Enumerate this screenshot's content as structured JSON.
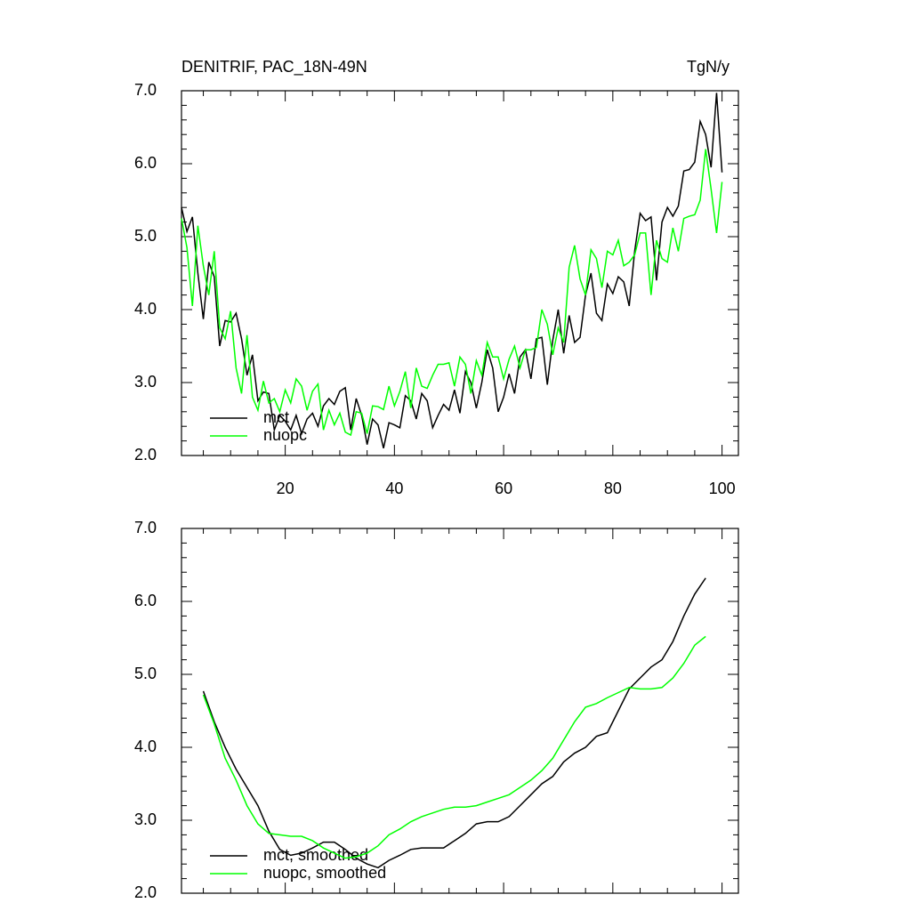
{
  "chart_data": [
    {
      "type": "line",
      "title": "DENITRIF, PAC_18N-49N",
      "units": "TgN/y",
      "x": [
        1,
        2,
        3,
        4,
        5,
        6,
        7,
        8,
        9,
        10,
        11,
        12,
        13,
        14,
        15,
        16,
        17,
        18,
        19,
        20,
        21,
        22,
        23,
        24,
        25,
        26,
        27,
        28,
        29,
        30,
        31,
        32,
        33,
        34,
        35,
        36,
        37,
        38,
        39,
        40,
        41,
        42,
        43,
        44,
        45,
        46,
        47,
        48,
        49,
        50,
        51,
        52,
        53,
        54,
        55,
        56,
        57,
        58,
        59,
        60,
        61,
        62,
        63,
        64,
        65,
        66,
        67,
        68,
        69,
        70,
        71,
        72,
        73,
        74,
        75,
        76,
        77,
        78,
        79,
        80,
        81,
        82,
        83,
        84,
        85,
        86,
        87,
        88,
        89,
        90,
        91,
        92,
        93,
        94,
        95,
        96,
        97,
        98,
        99,
        100
      ],
      "series": [
        {
          "name": "mct",
          "color": "#000000",
          "values": [
            5.4,
            5.07,
            5.27,
            4.5,
            3.87,
            4.65,
            4.45,
            3.5,
            3.85,
            3.83,
            3.95,
            3.6,
            3.1,
            3.38,
            2.75,
            2.87,
            2.85,
            2.35,
            2.55,
            2.47,
            2.35,
            2.55,
            2.3,
            2.5,
            2.58,
            2.4,
            2.68,
            2.78,
            2.7,
            2.88,
            2.93,
            2.35,
            2.78,
            2.55,
            2.15,
            2.5,
            2.42,
            2.1,
            2.45,
            2.42,
            2.38,
            2.82,
            2.75,
            2.5,
            2.85,
            2.75,
            2.38,
            2.55,
            2.7,
            2.62,
            2.9,
            2.58,
            3.15,
            3.0,
            2.65,
            3.0,
            3.45,
            3.2,
            2.6,
            2.8,
            3.12,
            2.85,
            3.35,
            3.45,
            3.05,
            3.6,
            3.62,
            2.97,
            3.58,
            4.0,
            3.4,
            3.92,
            3.55,
            3.62,
            4.2,
            4.5,
            3.95,
            3.85,
            4.35,
            4.22,
            4.45,
            4.38,
            4.05,
            4.8,
            5.32,
            5.22,
            5.27,
            4.4,
            5.2,
            5.4,
            5.28,
            5.42,
            5.9,
            5.92,
            6.02,
            6.58,
            6.4,
            5.95,
            6.97,
            5.88
          ]
        },
        {
          "name": "nuopc",
          "color": "#00ff00",
          "values": [
            5.25,
            4.85,
            4.05,
            5.15,
            4.6,
            4.2,
            4.8,
            3.75,
            3.6,
            3.98,
            3.2,
            2.85,
            3.65,
            2.8,
            2.62,
            3.02,
            2.72,
            2.78,
            2.6,
            2.9,
            2.72,
            3.05,
            2.95,
            2.62,
            2.88,
            2.98,
            2.35,
            2.62,
            2.42,
            2.58,
            2.32,
            2.28,
            2.6,
            2.58,
            2.3,
            2.68,
            2.67,
            2.63,
            2.95,
            2.68,
            2.88,
            3.15,
            2.65,
            3.2,
            2.95,
            2.92,
            3.1,
            3.25,
            3.25,
            3.27,
            2.95,
            3.35,
            3.25,
            2.85,
            3.3,
            3.1,
            3.55,
            3.35,
            3.35,
            3.05,
            3.32,
            3.5,
            3.2,
            3.45,
            3.45,
            3.48,
            4.0,
            3.8,
            3.38,
            3.75,
            3.55,
            4.58,
            4.88,
            4.42,
            4.2,
            4.82,
            4.7,
            4.3,
            4.8,
            4.75,
            4.95,
            4.6,
            4.65,
            4.75,
            5.05,
            5.05,
            4.2,
            4.95,
            4.7,
            4.65,
            5.12,
            4.8,
            5.25,
            5.28,
            5.3,
            5.5,
            6.2,
            5.65,
            5.05,
            5.75
          ]
        }
      ],
      "xlim": [
        1,
        103
      ],
      "ylim": [
        2,
        7
      ],
      "xticks": [
        20,
        40,
        60,
        80,
        100
      ],
      "xticklabels": true,
      "yticks": [
        {
          "value": 2,
          "label": "2.0"
        },
        {
          "value": 3,
          "label": "3.0"
        },
        {
          "value": 4,
          "label": "4.0"
        },
        {
          "value": 5,
          "label": "5.0"
        },
        {
          "value": 6,
          "label": "6.0"
        },
        {
          "value": 7,
          "label": "7.0"
        }
      ],
      "legend": "lower left"
    },
    {
      "type": "line",
      "x": [
        5,
        7,
        9,
        11,
        13,
        15,
        17,
        19,
        21,
        23,
        25,
        27,
        29,
        31,
        33,
        35,
        37,
        39,
        41,
        43,
        45,
        47,
        49,
        51,
        53,
        55,
        57,
        59,
        61,
        63,
        65,
        67,
        69,
        71,
        73,
        75,
        77,
        79,
        81,
        83,
        85,
        87,
        89,
        91,
        93,
        95,
        97
      ],
      "series": [
        {
          "name": "mct, smoothed",
          "color": "#000000",
          "values": [
            4.77,
            4.35,
            4.0,
            3.7,
            3.45,
            3.2,
            2.85,
            2.6,
            2.52,
            2.55,
            2.62,
            2.7,
            2.7,
            2.6,
            2.48,
            2.4,
            2.35,
            2.45,
            2.52,
            2.6,
            2.62,
            2.62,
            2.62,
            2.72,
            2.82,
            2.95,
            2.98,
            2.98,
            3.05,
            3.2,
            3.35,
            3.5,
            3.6,
            3.8,
            3.92,
            4.0,
            4.15,
            4.2,
            4.5,
            4.8,
            4.95,
            5.1,
            5.2,
            5.45,
            5.8,
            6.1,
            6.32
          ]
        },
        {
          "name": "nuopc, smoothed",
          "color": "#00ff00",
          "values": [
            4.72,
            4.32,
            3.85,
            3.55,
            3.2,
            2.95,
            2.82,
            2.8,
            2.78,
            2.78,
            2.72,
            2.62,
            2.55,
            2.48,
            2.5,
            2.55,
            2.65,
            2.8,
            2.88,
            2.98,
            3.05,
            3.1,
            3.15,
            3.18,
            3.18,
            3.2,
            3.25,
            3.3,
            3.35,
            3.45,
            3.55,
            3.68,
            3.85,
            4.1,
            4.35,
            4.55,
            4.6,
            4.68,
            4.75,
            4.82,
            4.8,
            4.8,
            4.82,
            4.95,
            5.15,
            5.4,
            5.52
          ]
        }
      ],
      "xlim": [
        1,
        103
      ],
      "ylim": [
        2,
        7
      ],
      "xticks": [
        20,
        40,
        60,
        80,
        100
      ],
      "xticklabels": false,
      "yticks": [
        {
          "value": 2,
          "label": "2.0"
        },
        {
          "value": 3,
          "label": "3.0"
        },
        {
          "value": 4,
          "label": "4.0"
        },
        {
          "value": 5,
          "label": "5.0"
        },
        {
          "value": 6,
          "label": "6.0"
        },
        {
          "value": 7,
          "label": "7.0"
        }
      ],
      "legend": "lower left"
    }
  ]
}
